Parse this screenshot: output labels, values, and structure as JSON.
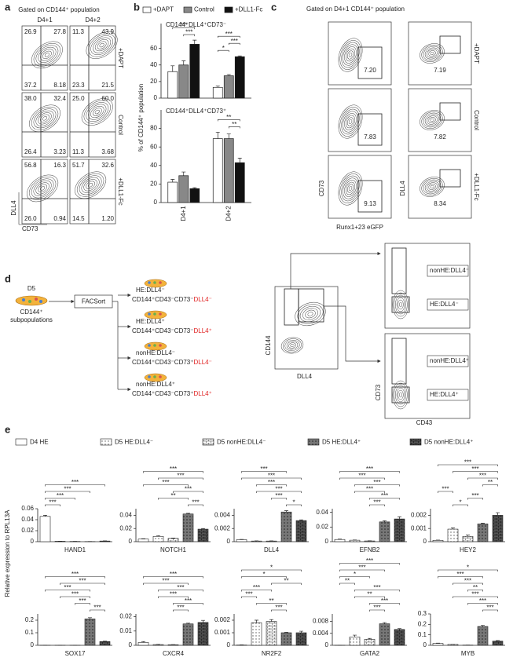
{
  "panel_labels": [
    "a",
    "b",
    "c",
    "d",
    "e"
  ],
  "panel_a": {
    "title": "Gated on CD144⁺ population",
    "columns": [
      "D4+1",
      "D4+2"
    ],
    "rows": [
      "+DAPT",
      "Control",
      "+DLL1-Fc"
    ],
    "y_axis": "DLL4",
    "x_axis": "CD73",
    "quadrants": [
      [
        [
          "26.9",
          "27.8",
          "37.2",
          "8.18"
        ],
        [
          "11.3",
          "43.9",
          "23.3",
          "21.5"
        ]
      ],
      [
        [
          "38.0",
          "32.4",
          "26.4",
          "3.23"
        ],
        [
          "25.0",
          "60.0",
          "11.3",
          "3.68"
        ]
      ],
      [
        [
          "56.8",
          "16.3",
          "26.0",
          "0.94"
        ],
        [
          "51.7",
          "32.6",
          "14.5",
          "1.20"
        ]
      ]
    ]
  },
  "panel_b": {
    "y_label": "% of CD144⁺ population",
    "legend": [
      {
        "name": "+DAPT",
        "color": "#ffffff"
      },
      {
        "name": "Control",
        "color": "#888888"
      },
      {
        "name": "+DLL1-Fc",
        "color": "#111111"
      }
    ]
  },
  "panel_c": {
    "title": "Gated on D4+1 CD144⁺ population",
    "rows": [
      "+DAPT",
      "Control",
      "+DLL1-Fc"
    ],
    "left_y_axis": "CD73",
    "left_x_axis": "Runx1+23 eGFP",
    "right_y_axis": "DLL4",
    "gates": [
      [
        "7.20",
        "7.19"
      ],
      [
        "7.83",
        "7.82"
      ],
      [
        "9.13",
        "8.34"
      ]
    ]
  },
  "panel_d": {
    "source": "D5",
    "source_label": [
      "CD144⁺",
      "subpopulations"
    ],
    "sort": "FACSort",
    "populations": [
      {
        "name": "HE:DLL4⁻",
        "markers": "CD144⁺CD43⁻CD73⁻",
        "dll4": "DLL4⁻"
      },
      {
        "name": "HE:DLL4⁺",
        "markers": "CD144⁺CD43⁻CD73⁻",
        "dll4": "DLL4⁺"
      },
      {
        "name": "nonHE:DLL4⁻",
        "markers": "CD144⁺CD43⁻CD73⁺",
        "dll4": "DLL4⁻"
      },
      {
        "name": "nonHE:DLL4⁺",
        "markers": "CD144⁺CD43⁻CD73⁺",
        "dll4": "DLL4⁺"
      }
    ],
    "gate_y_axis": "CD144",
    "gate_x_axis": "DLL4",
    "sub_gates": [
      "nonHE:DLL4⁻",
      "HE:DLL4⁻",
      "nonHE:DLL4⁺",
      "HE:DLL4⁺"
    ],
    "sub_y_axis": "CD73",
    "sub_x_axis": "CD43"
  },
  "panel_e": {
    "y_label": "Relative expression to RPL13A",
    "legend": [
      {
        "name": "D4 HE",
        "color": "#ffffff",
        "pattern": null
      },
      {
        "name": "D5 HE:DLL4⁻",
        "color": "#ffffff",
        "pattern": "dots"
      },
      {
        "name": "D5 nonHE:DLL4⁻",
        "color": "#ffffff",
        "pattern": "bricks"
      },
      {
        "name": "D5 HE:DLL4⁺",
        "color": "#777777",
        "pattern": "dark-dots"
      },
      {
        "name": "D5 nonHE:DLL4⁺",
        "color": "#555555",
        "pattern": "dark-bricks"
      }
    ]
  },
  "chart_data": [
    {
      "type": "grouped-bar",
      "title": "CD144⁺DLL4⁺CD73⁻",
      "categories": [
        null,
        null
      ],
      "ylim": [
        0,
        90
      ],
      "yticks": [
        0,
        20,
        40,
        60
      ],
      "series": [
        {
          "color": "#ffffff",
          "values": [
            32,
            13
          ],
          "errors": [
            7,
            1.5
          ]
        },
        {
          "color": "#888888",
          "values": [
            40,
            27
          ],
          "errors": [
            5,
            1.5
          ]
        },
        {
          "color": "#111111",
          "values": [
            65,
            50
          ],
          "errors": [
            5,
            1
          ]
        }
      ],
      "brackets": [
        {
          "category": 0,
          "from": 1,
          "to": 2,
          "label": "***"
        },
        {
          "category": 0,
          "from": 0,
          "to": 2,
          "label": "***"
        },
        {
          "category": 1,
          "from": 0,
          "to": 1,
          "label": "*"
        },
        {
          "category": 1,
          "from": 1,
          "to": 2,
          "label": "***"
        },
        {
          "category": 1,
          "from": 0,
          "to": 2,
          "label": "***"
        }
      ]
    },
    {
      "type": "grouped-bar",
      "title": "CD144⁺DLL4⁺CD73⁺",
      "categories": [
        "D4+1",
        "D4+2"
      ],
      "ylim": [
        0,
        100
      ],
      "yticks": [
        0,
        20,
        40,
        60,
        80
      ],
      "series": [
        {
          "color": "#ffffff",
          "values": [
            22,
            69
          ],
          "errors": [
            3,
            7
          ]
        },
        {
          "color": "#888888",
          "values": [
            29,
            69
          ],
          "errors": [
            4,
            5
          ]
        },
        {
          "color": "#111111",
          "values": [
            15,
            43
          ],
          "errors": [
            1,
            5
          ]
        }
      ],
      "brackets": [
        {
          "category": 1,
          "from": 1,
          "to": 2,
          "label": "**"
        },
        {
          "category": 1,
          "from": 0,
          "to": 2,
          "label": "**"
        }
      ]
    },
    {
      "type": "bar",
      "x_label": "HAND1",
      "ylim": [
        0,
        0.06
      ],
      "yticks": [
        0,
        0.02,
        0.04,
        0.06
      ],
      "values": [
        0.046,
        0.0008,
        0.0005,
        0.0003,
        0.0012
      ],
      "errors": [
        0.002,
        0.0002,
        0.0001,
        0.0001,
        0.0003
      ],
      "brackets": [
        {
          "from": 0,
          "to": 1,
          "label": "***"
        },
        {
          "from": 0,
          "to": 2,
          "label": "***"
        },
        {
          "from": 0,
          "to": 3,
          "label": "***"
        },
        {
          "from": 0,
          "to": 4,
          "label": "***"
        }
      ]
    },
    {
      "type": "bar",
      "x_label": "NOTCH1",
      "ylim": [
        0,
        0.05
      ],
      "yticks": [
        0,
        0.02,
        0.04
      ],
      "values": [
        0.004,
        0.008,
        0.005,
        0.042,
        0.019
      ],
      "errors": [
        0.0005,
        0.001,
        0.0005,
        0.001,
        0.001
      ],
      "brackets": [
        {
          "from": 3,
          "to": 4,
          "label": "***"
        },
        {
          "from": 1,
          "to": 3,
          "label": "**"
        },
        {
          "from": 2,
          "to": 4,
          "label": "***"
        },
        {
          "from": 0,
          "to": 3,
          "label": "***"
        },
        {
          "from": 1,
          "to": 4,
          "label": "***"
        },
        {
          "from": 0,
          "to": 4,
          "label": "***"
        }
      ]
    },
    {
      "type": "bar",
      "x_label": "DLL4",
      "ylim": [
        0,
        0.005
      ],
      "yticks": [
        0,
        0.002,
        0.004
      ],
      "values": [
        0.0003,
        0.0001,
        0.0001,
        0.0045,
        0.0032
      ],
      "errors": [
        5e-05,
        2e-05,
        2e-05,
        0.0002,
        0.0001
      ],
      "brackets": [
        {
          "from": 3,
          "to": 4,
          "label": "*"
        },
        {
          "from": 2,
          "to": 3,
          "label": "***"
        },
        {
          "from": 1,
          "to": 4,
          "label": "***"
        },
        {
          "from": 1,
          "to": 3,
          "label": "***"
        },
        {
          "from": 0,
          "to": 4,
          "label": "***"
        },
        {
          "from": 0,
          "to": 3,
          "label": "***"
        }
      ]
    },
    {
      "type": "bar",
      "x_label": "EFNB2",
      "ylim": [
        0,
        0.045
      ],
      "yticks": [
        0,
        0.02,
        0.04
      ],
      "values": [
        0.003,
        0.002,
        0.001,
        0.027,
        0.031
      ],
      "errors": [
        0.0005,
        0.0003,
        0.0002,
        0.0015,
        0.003
      ],
      "brackets": [
        {
          "from": 2,
          "to": 3,
          "label": "***"
        },
        {
          "from": 2,
          "to": 4,
          "label": "***"
        },
        {
          "from": 1,
          "to": 3,
          "label": "***"
        },
        {
          "from": 1,
          "to": 4,
          "label": "***"
        },
        {
          "from": 0,
          "to": 3,
          "label": "***"
        },
        {
          "from": 0,
          "to": 4,
          "label": "***"
        }
      ]
    },
    {
      "type": "bar",
      "x_label": "HEY2",
      "ylim": [
        0,
        0.0025
      ],
      "yticks": [
        0,
        0.001,
        0.002
      ],
      "values": [
        0.0001,
        0.00095,
        0.0004,
        0.00135,
        0.002
      ],
      "errors": [
        2e-05,
        0.0001,
        0.0001,
        5e-05,
        0.0002
      ],
      "brackets": [
        {
          "from": 1,
          "to": 2,
          "label": "*"
        },
        {
          "from": 2,
          "to": 3,
          "label": "***"
        },
        {
          "from": 0,
          "to": 1,
          "label": "***"
        },
        {
          "from": 3,
          "to": 4,
          "label": "**"
        },
        {
          "from": 2,
          "to": 4,
          "label": "***"
        },
        {
          "from": 1,
          "to": 4,
          "label": "***"
        },
        {
          "from": 0,
          "to": 4,
          "label": "***"
        }
      ]
    },
    {
      "type": "bar",
      "x_label": "SOX17",
      "ylim": [
        0,
        0.25
      ],
      "yticks": [
        0,
        0.1,
        0.2
      ],
      "values": [
        0.0005,
        0.0003,
        0.0003,
        0.21,
        0.03
      ],
      "errors": [
        0.0001,
        0.0001,
        0.0001,
        0.01,
        0.003
      ],
      "brackets": [
        {
          "from": 3,
          "to": 4,
          "label": "***"
        },
        {
          "from": 2,
          "to": 3,
          "label": "***"
        },
        {
          "from": 1,
          "to": 3,
          "label": "***"
        },
        {
          "from": 0,
          "to": 3,
          "label": "***"
        },
        {
          "from": 1,
          "to": 4,
          "label": "***"
        },
        {
          "from": 0,
          "to": 4,
          "label": "***"
        }
      ]
    },
    {
      "type": "bar",
      "x_label": "CXCR4",
      "ylim": [
        0,
        0.022
      ],
      "yticks": [
        0,
        0.01,
        0.02
      ],
      "values": [
        0.002,
        0.0005,
        0.0004,
        0.015,
        0.016
      ],
      "errors": [
        0.0006,
        0.0001,
        0.0001,
        0.0005,
        0.0015
      ],
      "brackets": [
        {
          "from": 2,
          "to": 3,
          "label": "***"
        },
        {
          "from": 2,
          "to": 4,
          "label": "***"
        },
        {
          "from": 1,
          "to": 3,
          "label": "***"
        },
        {
          "from": 1,
          "to": 4,
          "label": "***"
        },
        {
          "from": 0,
          "to": 3,
          "label": "***"
        },
        {
          "from": 0,
          "to": 4,
          "label": "***"
        }
      ]
    },
    {
      "type": "bar",
      "x_label": "NR2F2",
      "ylim": [
        0,
        0.0025
      ],
      "yticks": [
        0,
        0.001,
        0.002
      ],
      "values": [
        2e-05,
        0.0018,
        0.0019,
        0.001,
        0.001
      ],
      "errors": [
        1e-05,
        0.0002,
        0.00015,
        3e-05,
        0.00012
      ],
      "brackets": [
        {
          "from": 2,
          "to": 3,
          "label": "***"
        },
        {
          "from": 1,
          "to": 3,
          "label": "**"
        },
        {
          "from": 0,
          "to": 1,
          "label": "***"
        },
        {
          "from": 0,
          "to": 2,
          "label": "***"
        },
        {
          "from": 2,
          "to": 4,
          "label": "**"
        },
        {
          "from": 0,
          "to": 3,
          "label": "*"
        },
        {
          "from": 0,
          "to": 4,
          "label": "*"
        }
      ]
    },
    {
      "type": "bar",
      "x_label": "GATA2",
      "ylim": [
        0,
        0.0105
      ],
      "yticks": [
        0,
        0.004,
        0.008
      ],
      "values": [
        3e-05,
        0.0028,
        0.002,
        0.0072,
        0.0053
      ],
      "errors": [
        1e-05,
        0.0006,
        0.0003,
        0.0004,
        0.0003
      ],
      "brackets": [
        {
          "from": 2,
          "to": 3,
          "label": "***"
        },
        {
          "from": 2,
          "to": 4,
          "label": "***"
        },
        {
          "from": 1,
          "to": 3,
          "label": "**"
        },
        {
          "from": 1,
          "to": 4,
          "label": "***"
        },
        {
          "from": 0,
          "to": 1,
          "label": "**"
        },
        {
          "from": 0,
          "to": 2,
          "label": "*"
        },
        {
          "from": 0,
          "to": 3,
          "label": "***"
        },
        {
          "from": 0,
          "to": 4,
          "label": "***"
        }
      ]
    },
    {
      "type": "bar",
      "x_label": "MYB",
      "ylim": [
        0,
        0.3
      ],
      "yticks": [
        0,
        0.1,
        0.2,
        0.3
      ],
      "values": [
        0.018,
        0.008,
        0.002,
        0.18,
        0.04
      ],
      "errors": [
        0.003,
        0.001,
        0.0005,
        0.01,
        0.005
      ],
      "brackets": [
        {
          "from": 3,
          "to": 4,
          "label": "***"
        },
        {
          "from": 2,
          "to": 4,
          "label": "***"
        },
        {
          "from": 1,
          "to": 4,
          "label": "***"
        },
        {
          "from": 2,
          "to": 3,
          "label": "**"
        },
        {
          "from": 1,
          "to": 3,
          "label": "***"
        },
        {
          "from": 0,
          "to": 3,
          "label": "***"
        },
        {
          "from": 0,
          "to": 4,
          "label": "*"
        }
      ]
    }
  ]
}
